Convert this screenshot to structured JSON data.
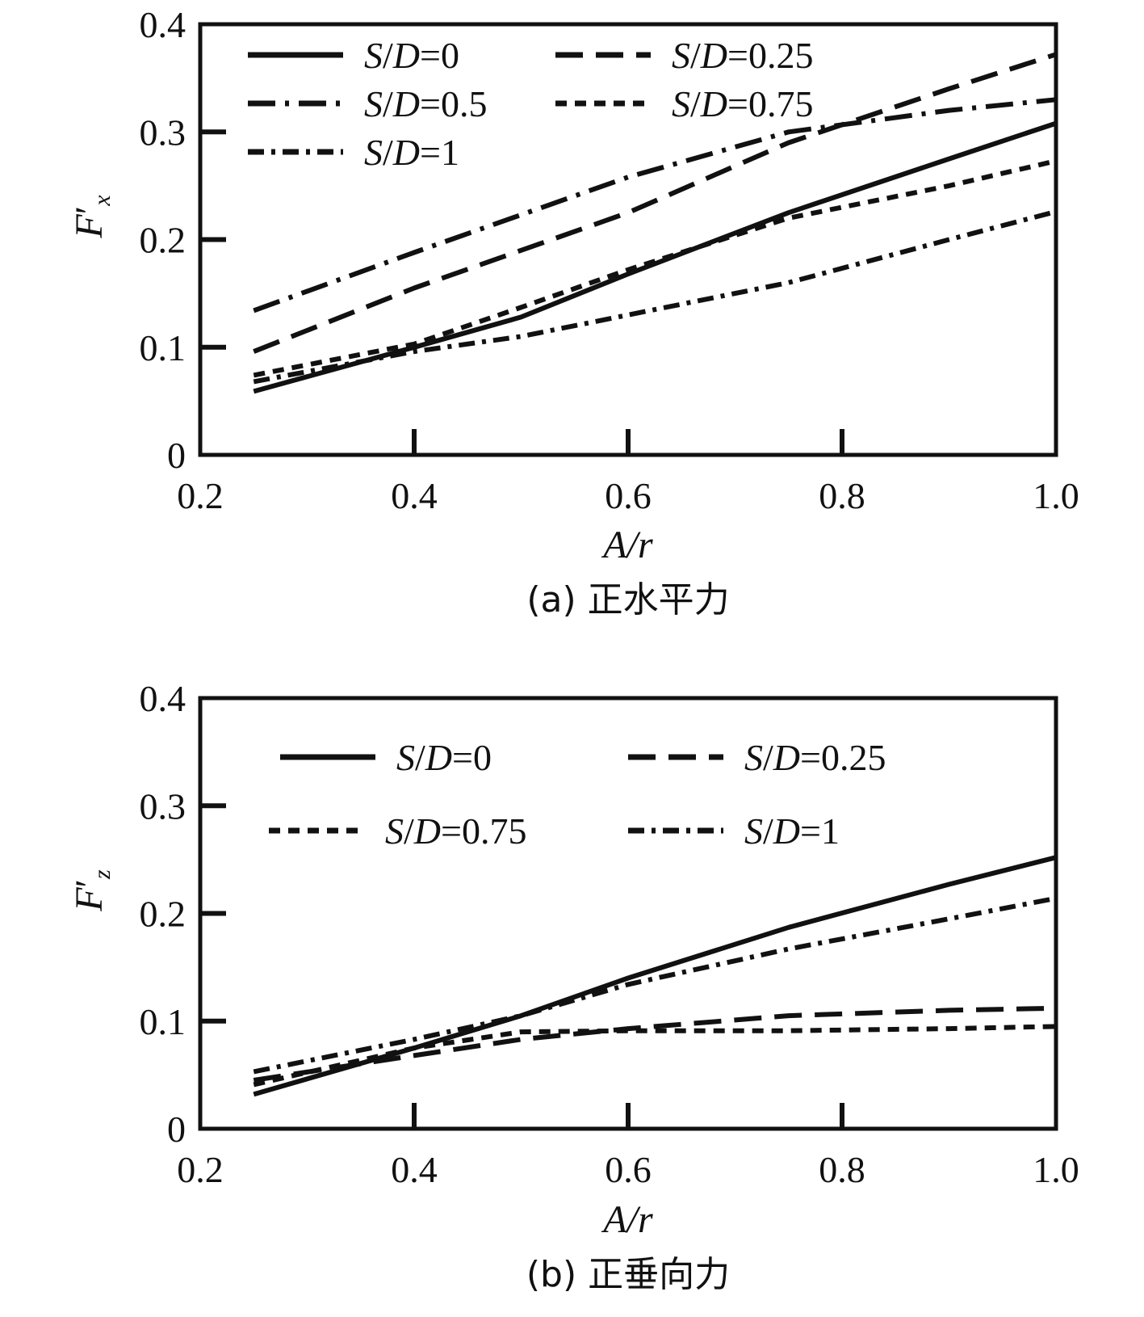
{
  "chart_data": [
    {
      "type": "line",
      "caption": "(a) 正水平力",
      "xlabel": "A/r",
      "ylabel_main": "F",
      "ylabel_prime": "′",
      "ylabel_sub": "x",
      "xlim": [
        0.2,
        1.0
      ],
      "ylim": [
        0,
        0.4
      ],
      "xticks": [
        "0.2",
        "0.4",
        "0.6",
        "0.8",
        "1.0"
      ],
      "yticks": [
        "0",
        "0.1",
        "0.2",
        "0.3",
        "0.4"
      ],
      "grid": false,
      "legend_position": "top-left",
      "series": [
        {
          "name": "S/D=0",
          "name_italic": "S",
          "name_sep": "/",
          "name_italic2": "D",
          "name_value": "=0",
          "style": "solid",
          "x": [
            0.25,
            0.4,
            0.5,
            0.6,
            0.75,
            0.9,
            1.0
          ],
          "y": [
            0.059,
            0.1,
            0.128,
            0.168,
            0.225,
            0.275,
            0.308
          ]
        },
        {
          "name": "S/D=0.25",
          "name_italic": "S",
          "name_sep": "/",
          "name_italic2": "D",
          "name_value": "=0.25",
          "style": "longdash",
          "x": [
            0.25,
            0.4,
            0.6,
            0.75,
            0.9,
            1.0
          ],
          "y": [
            0.096,
            0.155,
            0.225,
            0.29,
            0.34,
            0.372
          ]
        },
        {
          "name": "S/D=0.5",
          "name_italic": "S",
          "name_sep": "/",
          "name_italic2": "D",
          "name_value": "=0.5",
          "style": "longdashdot",
          "x": [
            0.25,
            0.4,
            0.6,
            0.75,
            0.9,
            1.0
          ],
          "y": [
            0.134,
            0.188,
            0.258,
            0.3,
            0.32,
            0.33
          ]
        },
        {
          "name": "S/D=0.75",
          "name_italic": "S",
          "name_sep": "/",
          "name_italic2": "D",
          "name_value": "=0.75",
          "style": "shortdash",
          "x": [
            0.25,
            0.4,
            0.5,
            0.6,
            0.75,
            0.9,
            1.0
          ],
          "y": [
            0.074,
            0.103,
            0.137,
            0.172,
            0.22,
            0.25,
            0.273
          ]
        },
        {
          "name": "S/D=1",
          "name_italic": "S",
          "name_sep": "/",
          "name_italic2": "D",
          "name_value": "=1",
          "style": "dashdot",
          "x": [
            0.25,
            0.4,
            0.5,
            0.6,
            0.75,
            0.9,
            1.0
          ],
          "y": [
            0.068,
            0.096,
            0.11,
            0.13,
            0.16,
            0.2,
            0.226
          ]
        }
      ],
      "legend_order": [
        0,
        1,
        2,
        3,
        4
      ]
    },
    {
      "type": "line",
      "caption": "(b) 正垂向力",
      "xlabel": "A/r",
      "ylabel_main": "F",
      "ylabel_prime": "′",
      "ylabel_sub": "z",
      "xlim": [
        0.2,
        1.0
      ],
      "ylim": [
        0,
        0.4
      ],
      "xticks": [
        "0.2",
        "0.4",
        "0.6",
        "0.8",
        "1.0"
      ],
      "yticks": [
        "0",
        "0.1",
        "0.2",
        "0.3",
        "0.4"
      ],
      "grid": false,
      "legend_position": "top",
      "series": [
        {
          "name": "S/D=0",
          "name_italic": "S",
          "name_sep": "/",
          "name_italic2": "D",
          "name_value": "=0",
          "style": "solid",
          "x": [
            0.25,
            0.4,
            0.5,
            0.6,
            0.75,
            0.9,
            1.0
          ],
          "y": [
            0.032,
            0.075,
            0.105,
            0.14,
            0.187,
            0.227,
            0.252
          ]
        },
        {
          "name": "S/D=0.25",
          "name_italic": "S",
          "name_sep": "/",
          "name_italic2": "D",
          "name_value": "=0.25",
          "style": "longdash",
          "x": [
            0.25,
            0.4,
            0.5,
            0.6,
            0.75,
            0.9,
            1.0
          ],
          "y": [
            0.045,
            0.068,
            0.083,
            0.093,
            0.105,
            0.11,
            0.112
          ]
        },
        {
          "name": "S/D=0.75",
          "name_italic": "S",
          "name_sep": "/",
          "name_italic2": "D",
          "name_value": "=0.75",
          "style": "shortdash",
          "x": [
            0.25,
            0.4,
            0.5,
            0.6,
            0.75,
            0.9,
            1.0
          ],
          "y": [
            0.041,
            0.075,
            0.09,
            0.091,
            0.091,
            0.093,
            0.095
          ]
        },
        {
          "name": "S/D=1",
          "name_italic": "S",
          "name_sep": "/",
          "name_italic2": "D",
          "name_value": "=1",
          "style": "dashdot",
          "x": [
            0.25,
            0.4,
            0.5,
            0.6,
            0.75,
            0.9,
            1.0
          ],
          "y": [
            0.053,
            0.083,
            0.105,
            0.134,
            0.167,
            0.195,
            0.214
          ]
        }
      ],
      "legend_order": [
        0,
        1,
        2,
        3
      ]
    }
  ]
}
